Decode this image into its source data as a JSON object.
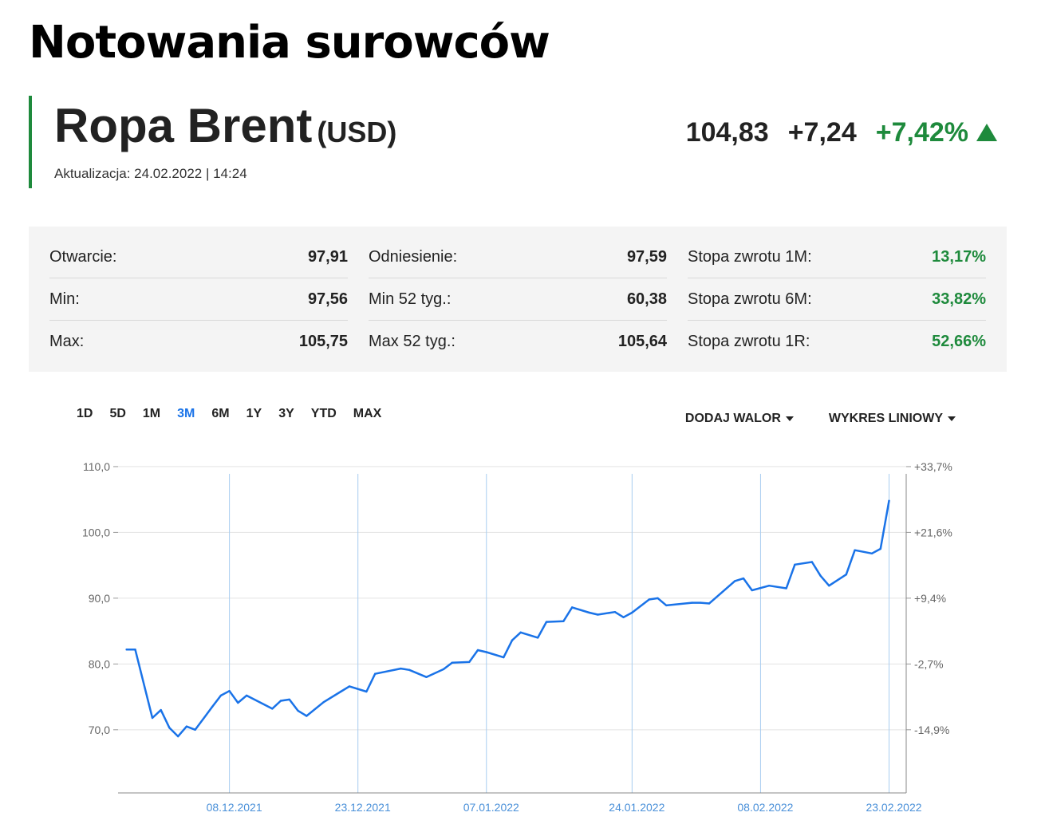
{
  "page": {
    "title": "Notowania surowców"
  },
  "instrument": {
    "name": "Ropa Brent",
    "currency": "(USD)",
    "update": "Aktualizacja: 24.02.2022 | 14:24",
    "last": "104,83",
    "change": "+7,24",
    "change_pct": "+7,42%",
    "accent_color": "#1e8a3c"
  },
  "stats": {
    "col1": [
      {
        "label": "Otwarcie:",
        "value": "97,91"
      },
      {
        "label": "Min:",
        "value": "97,56"
      },
      {
        "label": "Max:",
        "value": "105,75"
      }
    ],
    "col2": [
      {
        "label": "Odniesienie:",
        "value": "97,59"
      },
      {
        "label": "Min 52 tyg.:",
        "value": "60,38"
      },
      {
        "label": "Max 52 tyg.:",
        "value": "105,64"
      }
    ],
    "col3": [
      {
        "label": "Stopa zwrotu 1M:",
        "value": "13,17%"
      },
      {
        "label": "Stopa zwrotu 6M:",
        "value": "33,82%"
      },
      {
        "label": "Stopa zwrotu 1R:",
        "value": "52,66%"
      }
    ]
  },
  "range_tabs": [
    "1D",
    "5D",
    "1M",
    "3M",
    "6M",
    "1Y",
    "3Y",
    "YTD",
    "MAX"
  ],
  "active_range": "3M",
  "controls": {
    "add_label": "DODAJ WALOR",
    "chart_type_label": "WYKRES LINIOWY"
  },
  "chart_data": {
    "type": "line",
    "line_color": "#1a73e8",
    "grid": true,
    "ylim": [
      60.4,
      108.9
    ],
    "y_ticks": [
      110,
      100,
      90,
      80,
      70
    ],
    "y_tick_labels": [
      "110,0",
      "100,0",
      "90,0",
      "80,0",
      "70,0"
    ],
    "y2_tick_labels": [
      "+33,7%",
      "+21,6%",
      "+9,4%",
      "-2,7%",
      "-14,9%"
    ],
    "x_ticks": [
      "2021-12-08",
      "2021-12-23",
      "2022-01-07",
      "2022-01-24",
      "2022-02-08",
      "2022-02-23"
    ],
    "x_tick_labels": [
      "08.12.2021",
      "23.12.2021",
      "07.01.2022",
      "24.01.2022",
      "08.02.2022",
      "23.02.2022"
    ],
    "x_range": [
      "2021-11-25",
      "2022-02-25"
    ],
    "series": [
      {
        "points": [
          [
            "2021-11-26",
            82.2
          ],
          [
            "2021-11-27",
            82.2
          ],
          [
            "2021-11-29",
            71.8
          ],
          [
            "2021-11-30",
            73.0
          ],
          [
            "2021-12-01",
            70.3
          ],
          [
            "2021-12-02",
            69.0
          ],
          [
            "2021-12-03",
            70.5
          ],
          [
            "2021-12-04",
            70.0
          ],
          [
            "2021-12-06",
            73.5
          ],
          [
            "2021-12-07",
            75.2
          ],
          [
            "2021-12-08",
            75.9
          ],
          [
            "2021-12-09",
            74.1
          ],
          [
            "2021-12-10",
            75.2
          ],
          [
            "2021-12-13",
            73.2
          ],
          [
            "2021-12-14",
            74.4
          ],
          [
            "2021-12-15",
            74.6
          ],
          [
            "2021-12-16",
            72.9
          ],
          [
            "2021-12-17",
            72.1
          ],
          [
            "2021-12-19",
            74.2
          ],
          [
            "2021-12-21",
            75.8
          ],
          [
            "2021-12-22",
            76.6
          ],
          [
            "2021-12-24",
            75.8
          ],
          [
            "2021-12-25",
            78.5
          ],
          [
            "2021-12-28",
            79.3
          ],
          [
            "2021-12-29",
            79.1
          ],
          [
            "2021-12-31",
            78.0
          ],
          [
            "2022-01-02",
            79.2
          ],
          [
            "2022-01-03",
            80.2
          ],
          [
            "2022-01-05",
            80.3
          ],
          [
            "2022-01-06",
            82.1
          ],
          [
            "2022-01-07",
            81.8
          ],
          [
            "2022-01-09",
            81.0
          ],
          [
            "2022-01-10",
            83.6
          ],
          [
            "2022-01-11",
            84.8
          ],
          [
            "2022-01-13",
            84.0
          ],
          [
            "2022-01-14",
            86.4
          ],
          [
            "2022-01-16",
            86.5
          ],
          [
            "2022-01-17",
            88.6
          ],
          [
            "2022-01-19",
            87.8
          ],
          [
            "2022-01-20",
            87.5
          ],
          [
            "2022-01-22",
            87.9
          ],
          [
            "2022-01-23",
            87.1
          ],
          [
            "2022-01-24",
            87.8
          ],
          [
            "2022-01-26",
            89.8
          ],
          [
            "2022-01-27",
            90.0
          ],
          [
            "2022-01-28",
            88.9
          ],
          [
            "2022-01-31",
            89.3
          ],
          [
            "2022-02-01",
            89.3
          ],
          [
            "2022-02-02",
            89.2
          ],
          [
            "2022-02-05",
            92.6
          ],
          [
            "2022-02-06",
            93.0
          ],
          [
            "2022-02-07",
            91.2
          ],
          [
            "2022-02-09",
            91.9
          ],
          [
            "2022-02-11",
            91.5
          ],
          [
            "2022-02-12",
            95.1
          ],
          [
            "2022-02-14",
            95.5
          ],
          [
            "2022-02-15",
            93.4
          ],
          [
            "2022-02-16",
            91.9
          ],
          [
            "2022-02-18",
            93.6
          ],
          [
            "2022-02-19",
            97.3
          ],
          [
            "2022-02-21",
            96.8
          ],
          [
            "2022-02-22",
            97.5
          ],
          [
            "2022-02-23",
            104.8
          ]
        ]
      }
    ]
  }
}
